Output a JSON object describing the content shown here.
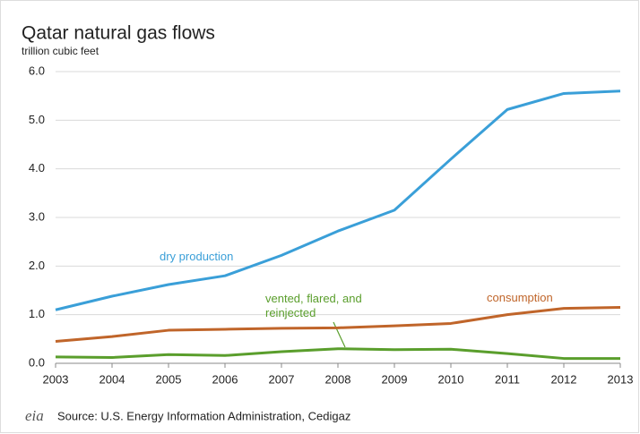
{
  "chart_data": {
    "type": "line",
    "title": "Qatar natural gas flows",
    "subtitle": "trillion cubic feet",
    "x": [
      2003,
      2004,
      2005,
      2006,
      2007,
      2008,
      2009,
      2010,
      2011,
      2012,
      2013
    ],
    "xlim": [
      2003,
      2013
    ],
    "xticks": [
      2003,
      2004,
      2005,
      2006,
      2007,
      2008,
      2009,
      2010,
      2011,
      2012,
      2013
    ],
    "ylim": [
      0,
      6
    ],
    "yticks": [
      {
        "value": 0,
        "label": "0.0"
      },
      {
        "value": 1,
        "label": "1.0"
      },
      {
        "value": 2,
        "label": "2.0"
      },
      {
        "value": 3,
        "label": "3.0"
      },
      {
        "value": 4,
        "label": "4.0"
      },
      {
        "value": 5,
        "label": "5.0"
      },
      {
        "value": 6,
        "label": "6.0"
      }
    ],
    "grid": true,
    "series": [
      {
        "name": "dry production",
        "color": "#3a9fd8",
        "values": [
          1.1,
          1.38,
          1.62,
          1.8,
          2.22,
          2.72,
          3.15,
          4.2,
          5.22,
          5.55,
          5.6
        ]
      },
      {
        "name": "consumption",
        "color": "#c0652a",
        "values": [
          0.45,
          0.55,
          0.68,
          0.7,
          0.72,
          0.73,
          0.77,
          0.82,
          1.0,
          1.13,
          1.15
        ]
      },
      {
        "name": "vented, flared, and reinjected",
        "color": "#5a9e2c",
        "values": [
          0.13,
          0.12,
          0.18,
          0.16,
          0.24,
          0.3,
          0.28,
          0.29,
          0.2,
          0.1,
          0.1
        ]
      }
    ],
    "logo": "eia",
    "source": "Source: U.S. Energy Information  Administration, Cedigaz"
  }
}
